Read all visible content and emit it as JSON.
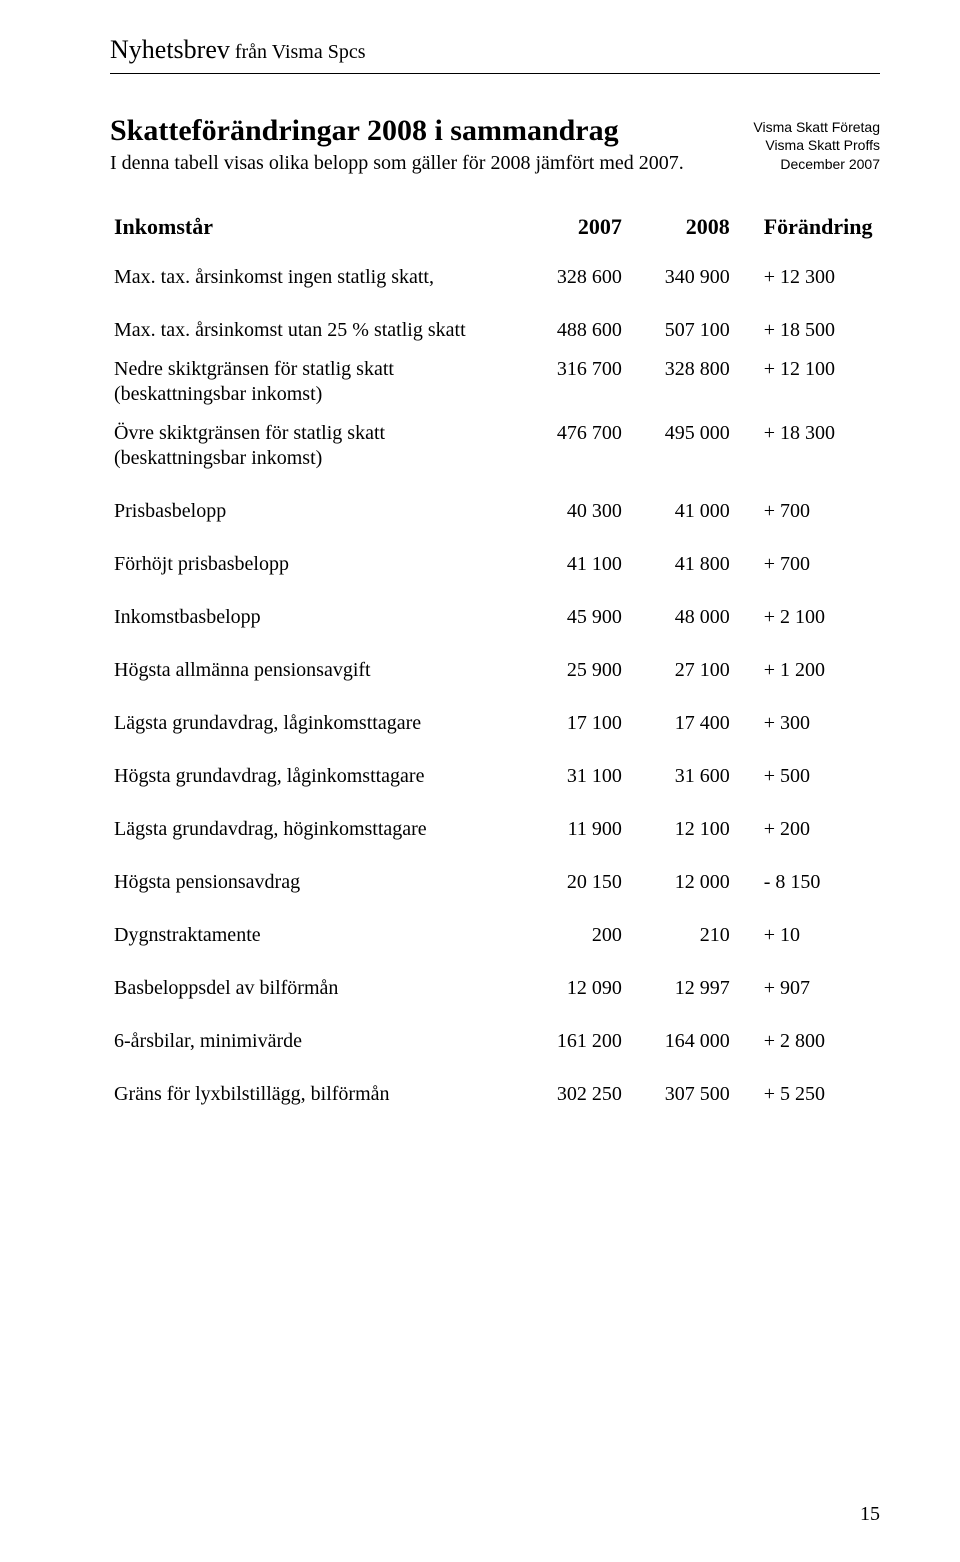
{
  "header": {
    "brand_bold": "Nyhetsbrev",
    "brand_light": " från Visma Spcs"
  },
  "title": {
    "heading": "Skatteförändringar 2008 i sammandrag",
    "sub": "I denna tabell visas olika belopp som gäller för 2008 jämfört med 2007."
  },
  "meta": {
    "line1": "Visma Skatt Företag",
    "line2": "Visma Skatt Proffs",
    "line3": "December 2007"
  },
  "table": {
    "head": {
      "label": "Inkomstår",
      "y2007": "2007",
      "y2008": "2008",
      "change": "Förändring"
    },
    "rows": [
      {
        "label": "Max. tax. årsinkomst ingen statlig skatt,",
        "y2007": "328 600",
        "y2008": "340 900",
        "change": "+ 12 300",
        "gapAfter": true
      },
      {
        "label": "Max. tax. årsinkomst utan 25 % statlig skatt",
        "y2007": "488 600",
        "y2008": "507 100",
        "change": "+ 18 500"
      },
      {
        "label": "Nedre skiktgränsen för statlig skatt (beskattningsbar inkomst)",
        "y2007": "316 700",
        "y2008": "328 800",
        "change": "+ 12 100"
      },
      {
        "label": "Övre skiktgränsen för statlig skatt (beskattningsbar inkomst)",
        "y2007": "476 700",
        "y2008": "495 000",
        "change": "+ 18 300",
        "gapAfter": true
      },
      {
        "label": "Prisbasbelopp",
        "y2007": "40 300",
        "y2008": "41 000",
        "change": "+ 700",
        "gapAfter": true
      },
      {
        "label": "Förhöjt prisbasbelopp",
        "y2007": "41 100",
        "y2008": "41 800",
        "change": "+ 700",
        "gapAfter": true
      },
      {
        "label": "Inkomstbasbelopp",
        "y2007": "45 900",
        "y2008": "48 000",
        "change": "+ 2 100",
        "gapAfter": true
      },
      {
        "label": "Högsta allmänna pensionsavgift",
        "y2007": "25 900",
        "y2008": "27 100",
        "change": "+ 1 200",
        "gapAfter": true
      },
      {
        "label": "Lägsta grundavdrag, låginkomsttagare",
        "y2007": "17 100",
        "y2008": "17 400",
        "change": "+ 300",
        "gapAfter": true
      },
      {
        "label": "Högsta grundavdrag, låginkomsttagare",
        "y2007": "31 100",
        "y2008": "31 600",
        "change": "+ 500",
        "gapAfter": true
      },
      {
        "label": "Lägsta grundavdrag, höginkomsttagare",
        "y2007": "11 900",
        "y2008": "12 100",
        "change": "+ 200",
        "gapAfter": true
      },
      {
        "label": "Högsta pensionsavdrag",
        "y2007": "20 150",
        "y2008": "12 000",
        "change": "- 8 150",
        "gapAfter": true
      },
      {
        "label": "Dygnstraktamente",
        "y2007": "200",
        "y2008": "210",
        "change": "+ 10",
        "gapAfter": true
      },
      {
        "label": "Basbeloppsdel av bilförmån",
        "y2007": "12  090",
        "y2008": "12 997",
        "change": "+ 907",
        "gapAfter": true
      },
      {
        "label": "6-årsbilar, minimivärde",
        "y2007": "161 200",
        "y2008": "164 000",
        "change": "+ 2 800",
        "gapAfter": true
      },
      {
        "label": "Gräns för lyxbilstillägg, bilförmån",
        "y2007": "302 250",
        "y2008": "307 500",
        "change": "+ 5 250"
      }
    ]
  },
  "page_number": "15",
  "colors": {
    "text": "#000000",
    "background": "#ffffff",
    "rule": "#000000"
  }
}
